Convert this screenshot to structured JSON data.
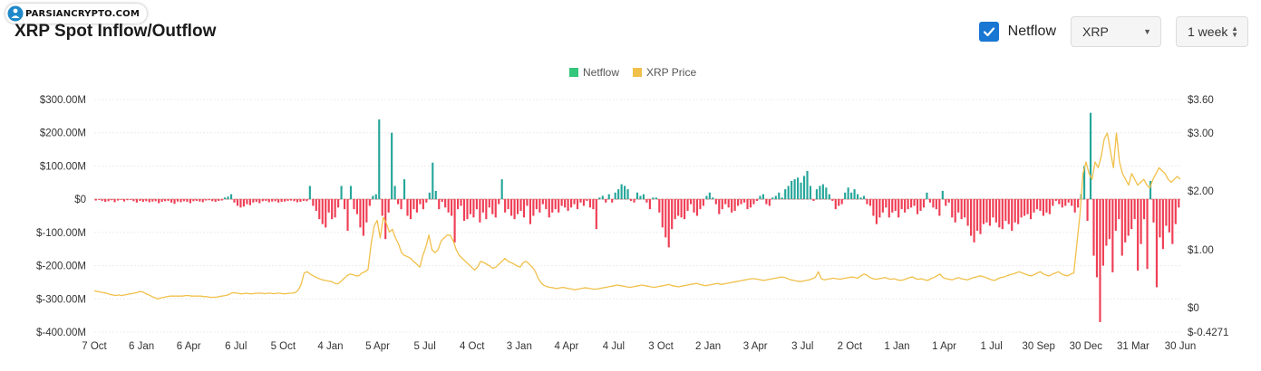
{
  "watermark": {
    "text": "PARSIANCRYPTO.COM"
  },
  "header": {
    "title": "XRP Spot Inflow/Outflow"
  },
  "controls": {
    "netflow_label": "Netflow",
    "netflow_checked": true,
    "coin_select": "XRP",
    "range_select": "1 week"
  },
  "colors": {
    "inflow": "#26a69a",
    "outflow": "#ef3e55",
    "price": "#f0c04a",
    "legend_netflow": "#34c77b",
    "accent": "#1976d2"
  },
  "chart_data": {
    "type": "bar",
    "title": "XRP Spot Inflow/Outflow",
    "legend": [
      "Netflow",
      "XRP Price"
    ],
    "legend_position": "top-center",
    "grid": true,
    "x_tick_labels": [
      "7 Oct",
      "6 Jan",
      "6 Apr",
      "6 Jul",
      "5 Oct",
      "4 Jan",
      "5 Apr",
      "5 Jul",
      "4 Oct",
      "3 Jan",
      "4 Apr",
      "4 Jul",
      "3 Oct",
      "2 Jan",
      "3 Apr",
      "3 Jul",
      "2 Oct",
      "1 Jan",
      "1 Apr",
      "1 Jul",
      "30 Sep",
      "30 Dec",
      "31 Mar",
      "30 Jun"
    ],
    "y_left_ticks": [
      "$300.00M",
      "$200.00M",
      "$100.00M",
      "$0",
      "$-100.00M",
      "$-200.00M",
      "$-300.00M",
      "$-400.00M"
    ],
    "y_left_range": [
      -400,
      300
    ],
    "y_left_unit": "M USD",
    "y_right_ticks": [
      "$3.60",
      "$3.00",
      "$2.00",
      "$1.00",
      "$0",
      "$-0.4271"
    ],
    "y_right_range": [
      -0.4271,
      3.6
    ],
    "series": [
      {
        "name": "Netflow",
        "type": "bar",
        "x_start": "2019-10-07",
        "x_step": "1 week",
        "values": [
          -4,
          -2,
          -5,
          -8,
          -6,
          -3,
          -9,
          -4,
          -2,
          -7,
          -3,
          -2,
          -6,
          -10,
          -5,
          -8,
          -6,
          -9,
          -7,
          -6,
          -12,
          -8,
          -6,
          -5,
          -10,
          -14,
          -7,
          -9,
          -6,
          -8,
          -12,
          -6,
          -5,
          -7,
          -9,
          -4,
          -3,
          -6,
          -8,
          -5,
          -4,
          5,
          8,
          15,
          -10,
          -20,
          -25,
          -22,
          -15,
          -18,
          -10,
          -8,
          -12,
          -6,
          -5,
          -9,
          -7,
          -6,
          -10,
          -8,
          -7,
          -5,
          -4,
          -6,
          -9,
          -8,
          -5,
          -6,
          40,
          -20,
          -35,
          -60,
          -75,
          -85,
          -40,
          -60,
          -55,
          -25,
          40,
          -30,
          -95,
          40,
          -30,
          -45,
          -85,
          -110,
          -70,
          -20,
          10,
          15,
          240,
          -50,
          -120,
          -40,
          200,
          40,
          -15,
          -30,
          60,
          -50,
          -60,
          -30,
          -40,
          -15,
          -30,
          -10,
          20,
          110,
          25,
          -30,
          -8,
          -25,
          -40,
          -50,
          -130,
          -30,
          -20,
          -65,
          -60,
          -45,
          -55,
          -30,
          -70,
          -40,
          -60,
          -25,
          -45,
          -55,
          -15,
          60,
          -40,
          -30,
          -50,
          -60,
          -45,
          -35,
          -55,
          -20,
          -75,
          -50,
          -30,
          -40,
          -15,
          -30,
          -55,
          -40,
          -30,
          -40,
          -20,
          -25,
          -35,
          -25,
          -15,
          -30,
          -10,
          -20,
          -5,
          -25,
          -30,
          -90,
          5,
          10,
          -10,
          15,
          -10,
          20,
          30,
          45,
          40,
          30,
          -5,
          -10,
          20,
          10,
          15,
          -10,
          -30,
          5,
          5,
          -40,
          -85,
          -115,
          -145,
          -90,
          -60,
          -50,
          -55,
          -60,
          -35,
          -15,
          -40,
          -50,
          -30,
          -20,
          10,
          20,
          5,
          -15,
          -45,
          -30,
          -15,
          -25,
          -40,
          -35,
          -20,
          -15,
          -10,
          -30,
          -25,
          -15,
          -5,
          10,
          15,
          -15,
          -20,
          5,
          10,
          20,
          5,
          30,
          40,
          55,
          60,
          65,
          50,
          70,
          85,
          40,
          -5,
          30,
          40,
          45,
          35,
          15,
          -5,
          -30,
          -20,
          -15,
          20,
          35,
          20,
          30,
          15,
          5,
          10,
          -15,
          -20,
          -50,
          -75,
          -55,
          -40,
          -25,
          -55,
          -40,
          -35,
          -55,
          -30,
          -40,
          -30,
          -25,
          -20,
          -45,
          -35,
          -25,
          20,
          -10,
          -25,
          -30,
          -50,
          25,
          -20,
          -10,
          -55,
          -70,
          -40,
          -60,
          -55,
          -80,
          -110,
          -130,
          -95,
          -105,
          -75,
          -70,
          -80,
          -55,
          -70,
          -85,
          -90,
          -65,
          -75,
          -95,
          -70,
          -75,
          -55,
          -50,
          -45,
          -60,
          -40,
          -30,
          -35,
          -50,
          -40,
          -45,
          -20,
          -5,
          -15,
          -25,
          -20,
          -10,
          -20,
          -40,
          -25,
          15,
          100,
          -65,
          260,
          -170,
          -235,
          -370,
          -200,
          -140,
          -120,
          -220,
          -95,
          -60,
          -170,
          -130,
          -110,
          -90,
          -60,
          -215,
          -135,
          -60,
          -210,
          55,
          -70,
          -265,
          -115,
          -150,
          -80,
          -100,
          -135,
          -75,
          -25
        ]
      },
      {
        "name": "XRP Price",
        "type": "line",
        "x_start": "2019-10-07",
        "x_step": "1 week",
        "values": [
          0.29,
          0.28,
          0.27,
          0.26,
          0.25,
          0.23,
          0.22,
          0.21,
          0.22,
          0.21,
          0.22,
          0.23,
          0.24,
          0.25,
          0.26,
          0.28,
          0.27,
          0.24,
          0.22,
          0.19,
          0.17,
          0.15,
          0.17,
          0.18,
          0.19,
          0.2,
          0.2,
          0.2,
          0.2,
          0.2,
          0.21,
          0.21,
          0.2,
          0.2,
          0.2,
          0.2,
          0.19,
          0.19,
          0.18,
          0.18,
          0.18,
          0.19,
          0.2,
          0.21,
          0.22,
          0.25,
          0.26,
          0.25,
          0.24,
          0.24,
          0.25,
          0.24,
          0.24,
          0.25,
          0.25,
          0.25,
          0.24,
          0.25,
          0.25,
          0.24,
          0.25,
          0.25,
          0.24,
          0.24,
          0.25,
          0.25,
          0.26,
          0.3,
          0.4,
          0.6,
          0.62,
          0.58,
          0.55,
          0.52,
          0.5,
          0.48,
          0.47,
          0.46,
          0.45,
          0.42,
          0.41,
          0.45,
          0.5,
          0.55,
          0.58,
          0.57,
          0.55,
          0.55,
          0.6,
          0.62,
          0.66,
          1.1,
          1.4,
          1.5,
          1.2,
          1.55,
          1.45,
          1.3,
          1.35,
          1.2,
          1.1,
          0.95,
          0.9,
          0.88,
          0.85,
          0.8,
          0.75,
          0.7,
          0.9,
          1.05,
          1.25,
          1.0,
          0.95,
          1.0,
          1.15,
          1.2,
          1.25,
          1.25,
          1.15,
          1.0,
          0.9,
          0.85,
          0.8,
          0.75,
          0.7,
          0.65,
          0.7,
          0.8,
          0.78,
          0.75,
          0.72,
          0.68,
          0.7,
          0.75,
          0.8,
          0.85,
          0.8,
          0.78,
          0.75,
          0.72,
          0.7,
          0.78,
          0.8,
          0.75,
          0.7,
          0.62,
          0.5,
          0.42,
          0.38,
          0.36,
          0.35,
          0.34,
          0.33,
          0.34,
          0.35,
          0.34,
          0.33,
          0.32,
          0.31,
          0.32,
          0.33,
          0.34,
          0.34,
          0.33,
          0.32,
          0.32,
          0.33,
          0.34,
          0.35,
          0.36,
          0.37,
          0.38,
          0.39,
          0.38,
          0.37,
          0.36,
          0.35,
          0.36,
          0.37,
          0.38,
          0.39,
          0.38,
          0.37,
          0.36,
          0.35,
          0.36,
          0.37,
          0.38,
          0.39,
          0.4,
          0.38,
          0.37,
          0.36,
          0.37,
          0.38,
          0.39,
          0.4,
          0.41,
          0.42,
          0.4,
          0.39,
          0.38,
          0.39,
          0.4,
          0.41,
          0.42,
          0.4,
          0.41,
          0.42,
          0.43,
          0.44,
          0.45,
          0.46,
          0.47,
          0.48,
          0.49,
          0.5,
          0.5,
          0.49,
          0.48,
          0.47,
          0.48,
          0.49,
          0.5,
          0.51,
          0.52,
          0.53,
          0.52,
          0.5,
          0.48,
          0.47,
          0.46,
          0.45,
          0.46,
          0.47,
          0.48,
          0.5,
          0.52,
          0.62,
          0.5,
          0.48,
          0.49,
          0.5,
          0.51,
          0.5,
          0.49,
          0.5,
          0.51,
          0.52,
          0.53,
          0.52,
          0.51,
          0.55,
          0.58,
          0.56,
          0.52,
          0.5,
          0.49,
          0.5,
          0.51,
          0.52,
          0.5,
          0.49,
          0.5,
          0.48,
          0.47,
          0.48,
          0.5,
          0.52,
          0.53,
          0.5,
          0.49,
          0.5,
          0.48,
          0.47,
          0.5,
          0.52,
          0.55,
          0.58,
          0.52,
          0.5,
          0.49,
          0.48,
          0.5,
          0.52,
          0.5,
          0.49,
          0.48,
          0.5,
          0.52,
          0.53,
          0.55,
          0.54,
          0.52,
          0.5,
          0.48,
          0.47,
          0.5,
          0.52,
          0.53,
          0.55,
          0.57,
          0.58,
          0.6,
          0.62,
          0.6,
          0.58,
          0.56,
          0.55,
          0.57,
          0.6,
          0.62,
          0.58,
          0.56,
          0.55,
          0.58,
          0.6,
          0.62,
          0.58,
          0.56,
          0.55,
          0.58,
          0.6,
          1.1,
          1.6,
          2.3,
          2.5,
          2.3,
          2.2,
          2.5,
          2.4,
          2.6,
          2.9,
          3.0,
          2.7,
          2.4,
          3.0,
          2.5,
          2.3,
          2.2,
          2.1,
          2.3,
          2.2,
          2.1,
          2.15,
          2.2,
          2.1,
          2.05,
          2.2,
          2.3,
          2.4,
          2.35,
          2.3,
          2.2,
          2.15,
          2.2,
          2.25,
          2.2
        ]
      }
    ]
  }
}
